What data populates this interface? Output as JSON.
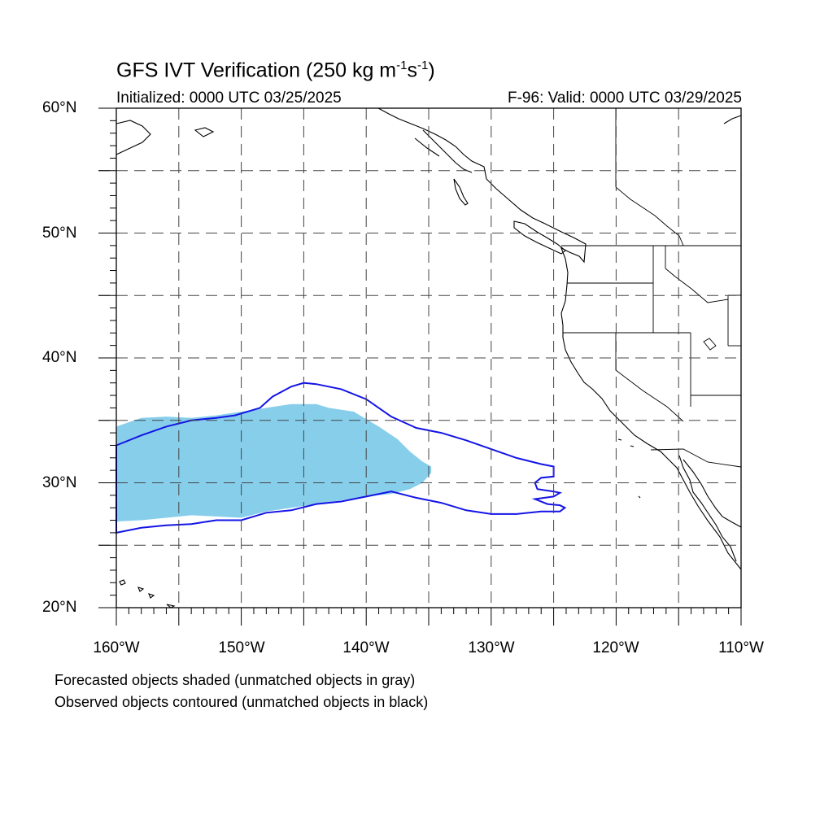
{
  "title": "GFS IVT Verification (250 kg m",
  "title_sup1": "-1",
  "title_mid": "s",
  "title_sup2": "-1",
  "title_end": ")",
  "init_text": "Initialized: 0000 UTC 03/25/2025",
  "valid_text": "F-96: Valid: 0000 UTC 03/29/2025",
  "lat_labels": [
    "60°N",
    "50°N",
    "40°N",
    "30°N",
    "20°N"
  ],
  "lon_labels": [
    "160°W",
    "150°W",
    "140°W",
    "130°W",
    "120°W",
    "110°W"
  ],
  "notes": {
    "forecast": "Forecasted objects shaded (unmatched objects in gray)",
    "observed": "Observed objects contoured (unmatched objects in black)"
  },
  "map_extent": {
    "lon_min": -160,
    "lon_max": -110,
    "lat_min": 20,
    "lat_max": 60
  },
  "colors": {
    "forecast_fill": "#87ceeb",
    "observed_contour": "#1414e6",
    "coast": "#000000",
    "grid": "#444444"
  },
  "forecast_object_shape": [
    [
      -160,
      34.5
    ],
    [
      -158,
      35.2
    ],
    [
      -156,
      35.3
    ],
    [
      -154,
      35.2
    ],
    [
      -152,
      35.4
    ],
    [
      -150,
      35.7
    ],
    [
      -148,
      36.0
    ],
    [
      -146,
      36.3
    ],
    [
      -144,
      36.3
    ],
    [
      -143,
      36.0
    ],
    [
      -141,
      35.7
    ],
    [
      -140,
      35.1
    ],
    [
      -139,
      34.5
    ],
    [
      -137.5,
      33.5
    ],
    [
      -136.5,
      32.5
    ],
    [
      -135.5,
      31.7
    ],
    [
      -134.8,
      31.3
    ],
    [
      -134.8,
      30.8
    ],
    [
      -135.5,
      30.0
    ],
    [
      -136.5,
      29.5
    ],
    [
      -138,
      29.1
    ],
    [
      -140,
      28.9
    ],
    [
      -142,
      28.6
    ],
    [
      -144,
      28.3
    ],
    [
      -146,
      28.0
    ],
    [
      -148,
      27.7
    ],
    [
      -150,
      27.2
    ],
    [
      -152,
      27.3
    ],
    [
      -154,
      27.4
    ],
    [
      -156,
      27.2
    ],
    [
      -158,
      27.0
    ],
    [
      -160,
      26.9
    ]
  ],
  "observed_object_shape": [
    [
      -160,
      33.0
    ],
    [
      -158,
      33.8
    ],
    [
      -156,
      34.5
    ],
    [
      -154,
      35.0
    ],
    [
      -152,
      35.2
    ],
    [
      -150.5,
      35.4
    ],
    [
      -148.5,
      36.0
    ],
    [
      -147.5,
      36.9
    ],
    [
      -146,
      37.7
    ],
    [
      -145,
      38.0
    ],
    [
      -144,
      37.9
    ],
    [
      -142,
      37.5
    ],
    [
      -140,
      36.7
    ],
    [
      -138,
      35.3
    ],
    [
      -136,
      34.4
    ],
    [
      -134,
      34.0
    ],
    [
      -132,
      33.4
    ],
    [
      -130,
      32.7
    ],
    [
      -128,
      32.0
    ],
    [
      -126,
      31.5
    ],
    [
      -125,
      31.3
    ],
    [
      -125,
      30.5
    ],
    [
      -126,
      30.4
    ],
    [
      -126.5,
      30.0
    ],
    [
      -126.3,
      29.5
    ],
    [
      -125,
      29.3
    ],
    [
      -124.5,
      29.2
    ],
    [
      -125,
      28.9
    ],
    [
      -126.5,
      28.7
    ],
    [
      -125.5,
      28.3
    ],
    [
      -124.5,
      28.2
    ],
    [
      -124.1,
      28.0
    ],
    [
      -124.5,
      27.7
    ],
    [
      -126,
      27.7
    ],
    [
      -128,
      27.5
    ],
    [
      -130,
      27.5
    ],
    [
      -132,
      27.8
    ],
    [
      -134,
      28.4
    ],
    [
      -136,
      28.8
    ],
    [
      -138,
      29.3
    ],
    [
      -140,
      28.9
    ],
    [
      -142,
      28.5
    ],
    [
      -144,
      28.3
    ],
    [
      -146,
      27.8
    ],
    [
      -148,
      27.6
    ],
    [
      -150,
      27.0
    ],
    [
      -152,
      27.0
    ],
    [
      -154,
      26.7
    ],
    [
      -156,
      26.6
    ],
    [
      -158,
      26.4
    ],
    [
      -160,
      26.0
    ]
  ]
}
